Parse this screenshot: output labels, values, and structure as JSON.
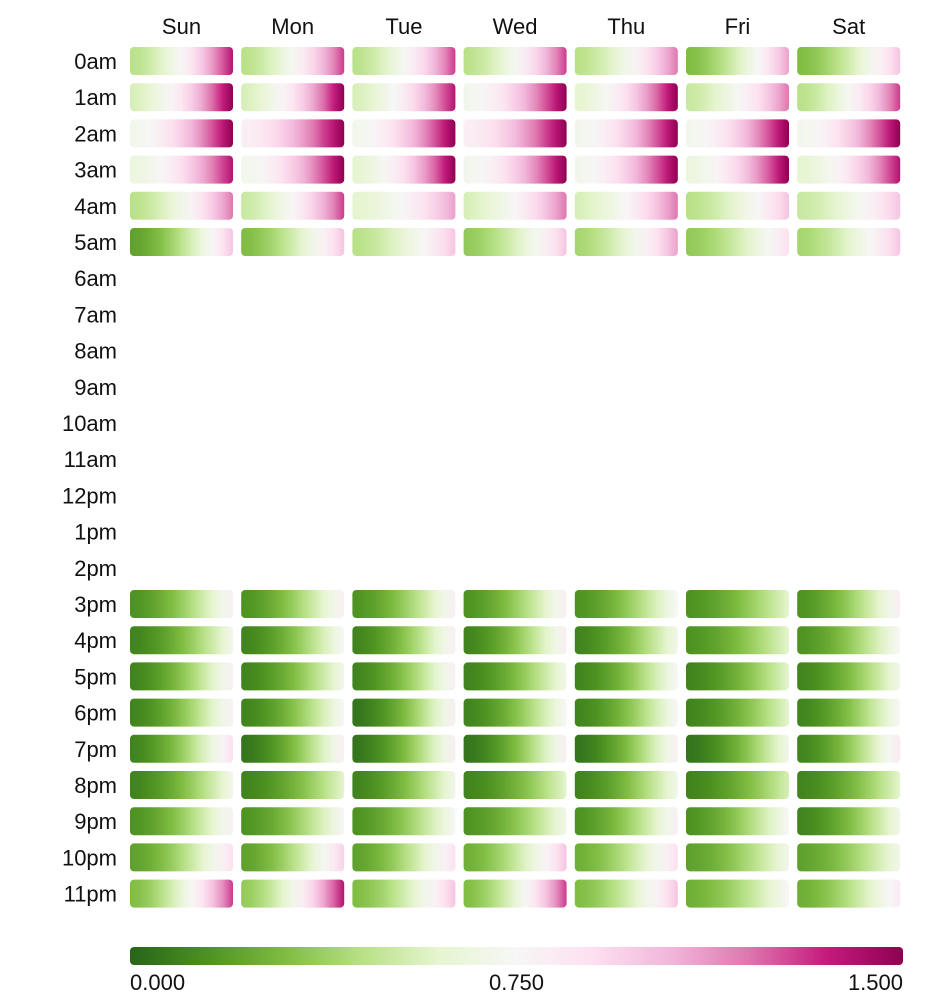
{
  "chart_data": {
    "type": "heatmap",
    "title": "",
    "columns": [
      "Sun",
      "Mon",
      "Tue",
      "Wed",
      "Thu",
      "Fri",
      "Sat"
    ],
    "rows": [
      "0am",
      "1am",
      "2am",
      "3am",
      "4am",
      "5am",
      "6am",
      "7am",
      "8am",
      "9am",
      "10am",
      "11am",
      "12pm",
      "1pm",
      "2pm",
      "3pm",
      "4pm",
      "5pm",
      "6pm",
      "7pm",
      "8pm",
      "9pm",
      "10pm",
      "11pm"
    ],
    "value_range": [
      0,
      1.5
    ],
    "colorbar": {
      "ticks": [
        "0.000",
        "0.750",
        "1.500"
      ],
      "tick_values": [
        0,
        0.75,
        1.5
      ],
      "colors": [
        "#276419",
        "#4d9221",
        "#7fbc41",
        "#b8e186",
        "#e6f5d0",
        "#f7f7f7",
        "#fde0ef",
        "#f1b6da",
        "#de77ae",
        "#c51b7d",
        "#8e0152"
      ]
    },
    "cell_profiles": {
      "0am": [
        [
          0.45,
          1.4
        ],
        [
          0.45,
          1.3
        ],
        [
          0.45,
          1.3
        ],
        [
          0.45,
          1.3
        ],
        [
          0.45,
          1.2
        ],
        [
          0.3,
          1.1
        ],
        [
          0.3,
          1.0
        ]
      ],
      "1am": [
        [
          0.55,
          1.5
        ],
        [
          0.55,
          1.5
        ],
        [
          0.55,
          1.4
        ],
        [
          0.7,
          1.5
        ],
        [
          0.6,
          1.5
        ],
        [
          0.5,
          1.2
        ],
        [
          0.45,
          1.3
        ]
      ],
      "2am": [
        [
          0.7,
          1.5
        ],
        [
          0.8,
          1.5
        ],
        [
          0.7,
          1.5
        ],
        [
          0.8,
          1.5
        ],
        [
          0.7,
          1.5
        ],
        [
          0.7,
          1.5
        ],
        [
          0.7,
          1.5
        ]
      ],
      "3am": [
        [
          0.65,
          1.4
        ],
        [
          0.7,
          1.5
        ],
        [
          0.6,
          1.5
        ],
        [
          0.7,
          1.5
        ],
        [
          0.7,
          1.5
        ],
        [
          0.65,
          1.5
        ],
        [
          0.6,
          1.4
        ]
      ],
      "4am": [
        [
          0.45,
          1.2
        ],
        [
          0.5,
          1.3
        ],
        [
          0.6,
          1.1
        ],
        [
          0.55,
          1.2
        ],
        [
          0.55,
          1.2
        ],
        [
          0.45,
          1.0
        ],
        [
          0.5,
          1.0
        ]
      ],
      "5am": [
        [
          0.2,
          1.0
        ],
        [
          0.3,
          1.0
        ],
        [
          0.45,
          1.0
        ],
        [
          0.35,
          1.0
        ],
        [
          0.4,
          1.1
        ],
        [
          0.35,
          0.9
        ],
        [
          0.4,
          1.0
        ]
      ],
      "3pm": [
        [
          0.15,
          0.8
        ],
        [
          0.15,
          0.8
        ],
        [
          0.15,
          0.8
        ],
        [
          0.15,
          0.8
        ],
        [
          0.15,
          0.75
        ],
        [
          0.15,
          0.6
        ],
        [
          0.15,
          0.8
        ]
      ],
      "4pm": [
        [
          0.1,
          0.7
        ],
        [
          0.1,
          0.75
        ],
        [
          0.1,
          0.8
        ],
        [
          0.1,
          0.8
        ],
        [
          0.1,
          0.7
        ],
        [
          0.15,
          0.6
        ],
        [
          0.15,
          0.75
        ]
      ],
      "5pm": [
        [
          0.1,
          0.8
        ],
        [
          0.1,
          0.7
        ],
        [
          0.1,
          0.8
        ],
        [
          0.1,
          0.7
        ],
        [
          0.1,
          0.75
        ],
        [
          0.1,
          0.6
        ],
        [
          0.1,
          0.7
        ]
      ],
      "6pm": [
        [
          0.1,
          0.8
        ],
        [
          0.1,
          0.75
        ],
        [
          0.05,
          0.8
        ],
        [
          0.1,
          0.75
        ],
        [
          0.1,
          0.75
        ],
        [
          0.1,
          0.6
        ],
        [
          0.1,
          0.75
        ]
      ],
      "7pm": [
        [
          0.1,
          0.9
        ],
        [
          0.05,
          0.8
        ],
        [
          0.05,
          0.8
        ],
        [
          0.05,
          0.8
        ],
        [
          0.05,
          0.8
        ],
        [
          0.05,
          0.7
        ],
        [
          0.1,
          0.85
        ]
      ],
      "8pm": [
        [
          0.1,
          0.7
        ],
        [
          0.1,
          0.6
        ],
        [
          0.1,
          0.7
        ],
        [
          0.1,
          0.6
        ],
        [
          0.1,
          0.7
        ],
        [
          0.1,
          0.55
        ],
        [
          0.1,
          0.6
        ]
      ],
      "9pm": [
        [
          0.15,
          0.8
        ],
        [
          0.15,
          0.75
        ],
        [
          0.15,
          0.75
        ],
        [
          0.15,
          0.7
        ],
        [
          0.15,
          0.8
        ],
        [
          0.15,
          0.75
        ],
        [
          0.1,
          0.7
        ]
      ],
      "10pm": [
        [
          0.2,
          0.9
        ],
        [
          0.2,
          0.95
        ],
        [
          0.2,
          0.9
        ],
        [
          0.25,
          1.0
        ],
        [
          0.25,
          0.9
        ],
        [
          0.2,
          0.7
        ],
        [
          0.2,
          0.7
        ]
      ],
      "11pm": [
        [
          0.3,
          1.3
        ],
        [
          0.35,
          1.4
        ],
        [
          0.3,
          1.0
        ],
        [
          0.3,
          1.3
        ],
        [
          0.3,
          1.0
        ],
        [
          0.25,
          0.75
        ],
        [
          0.25,
          0.85
        ]
      ]
    }
  }
}
